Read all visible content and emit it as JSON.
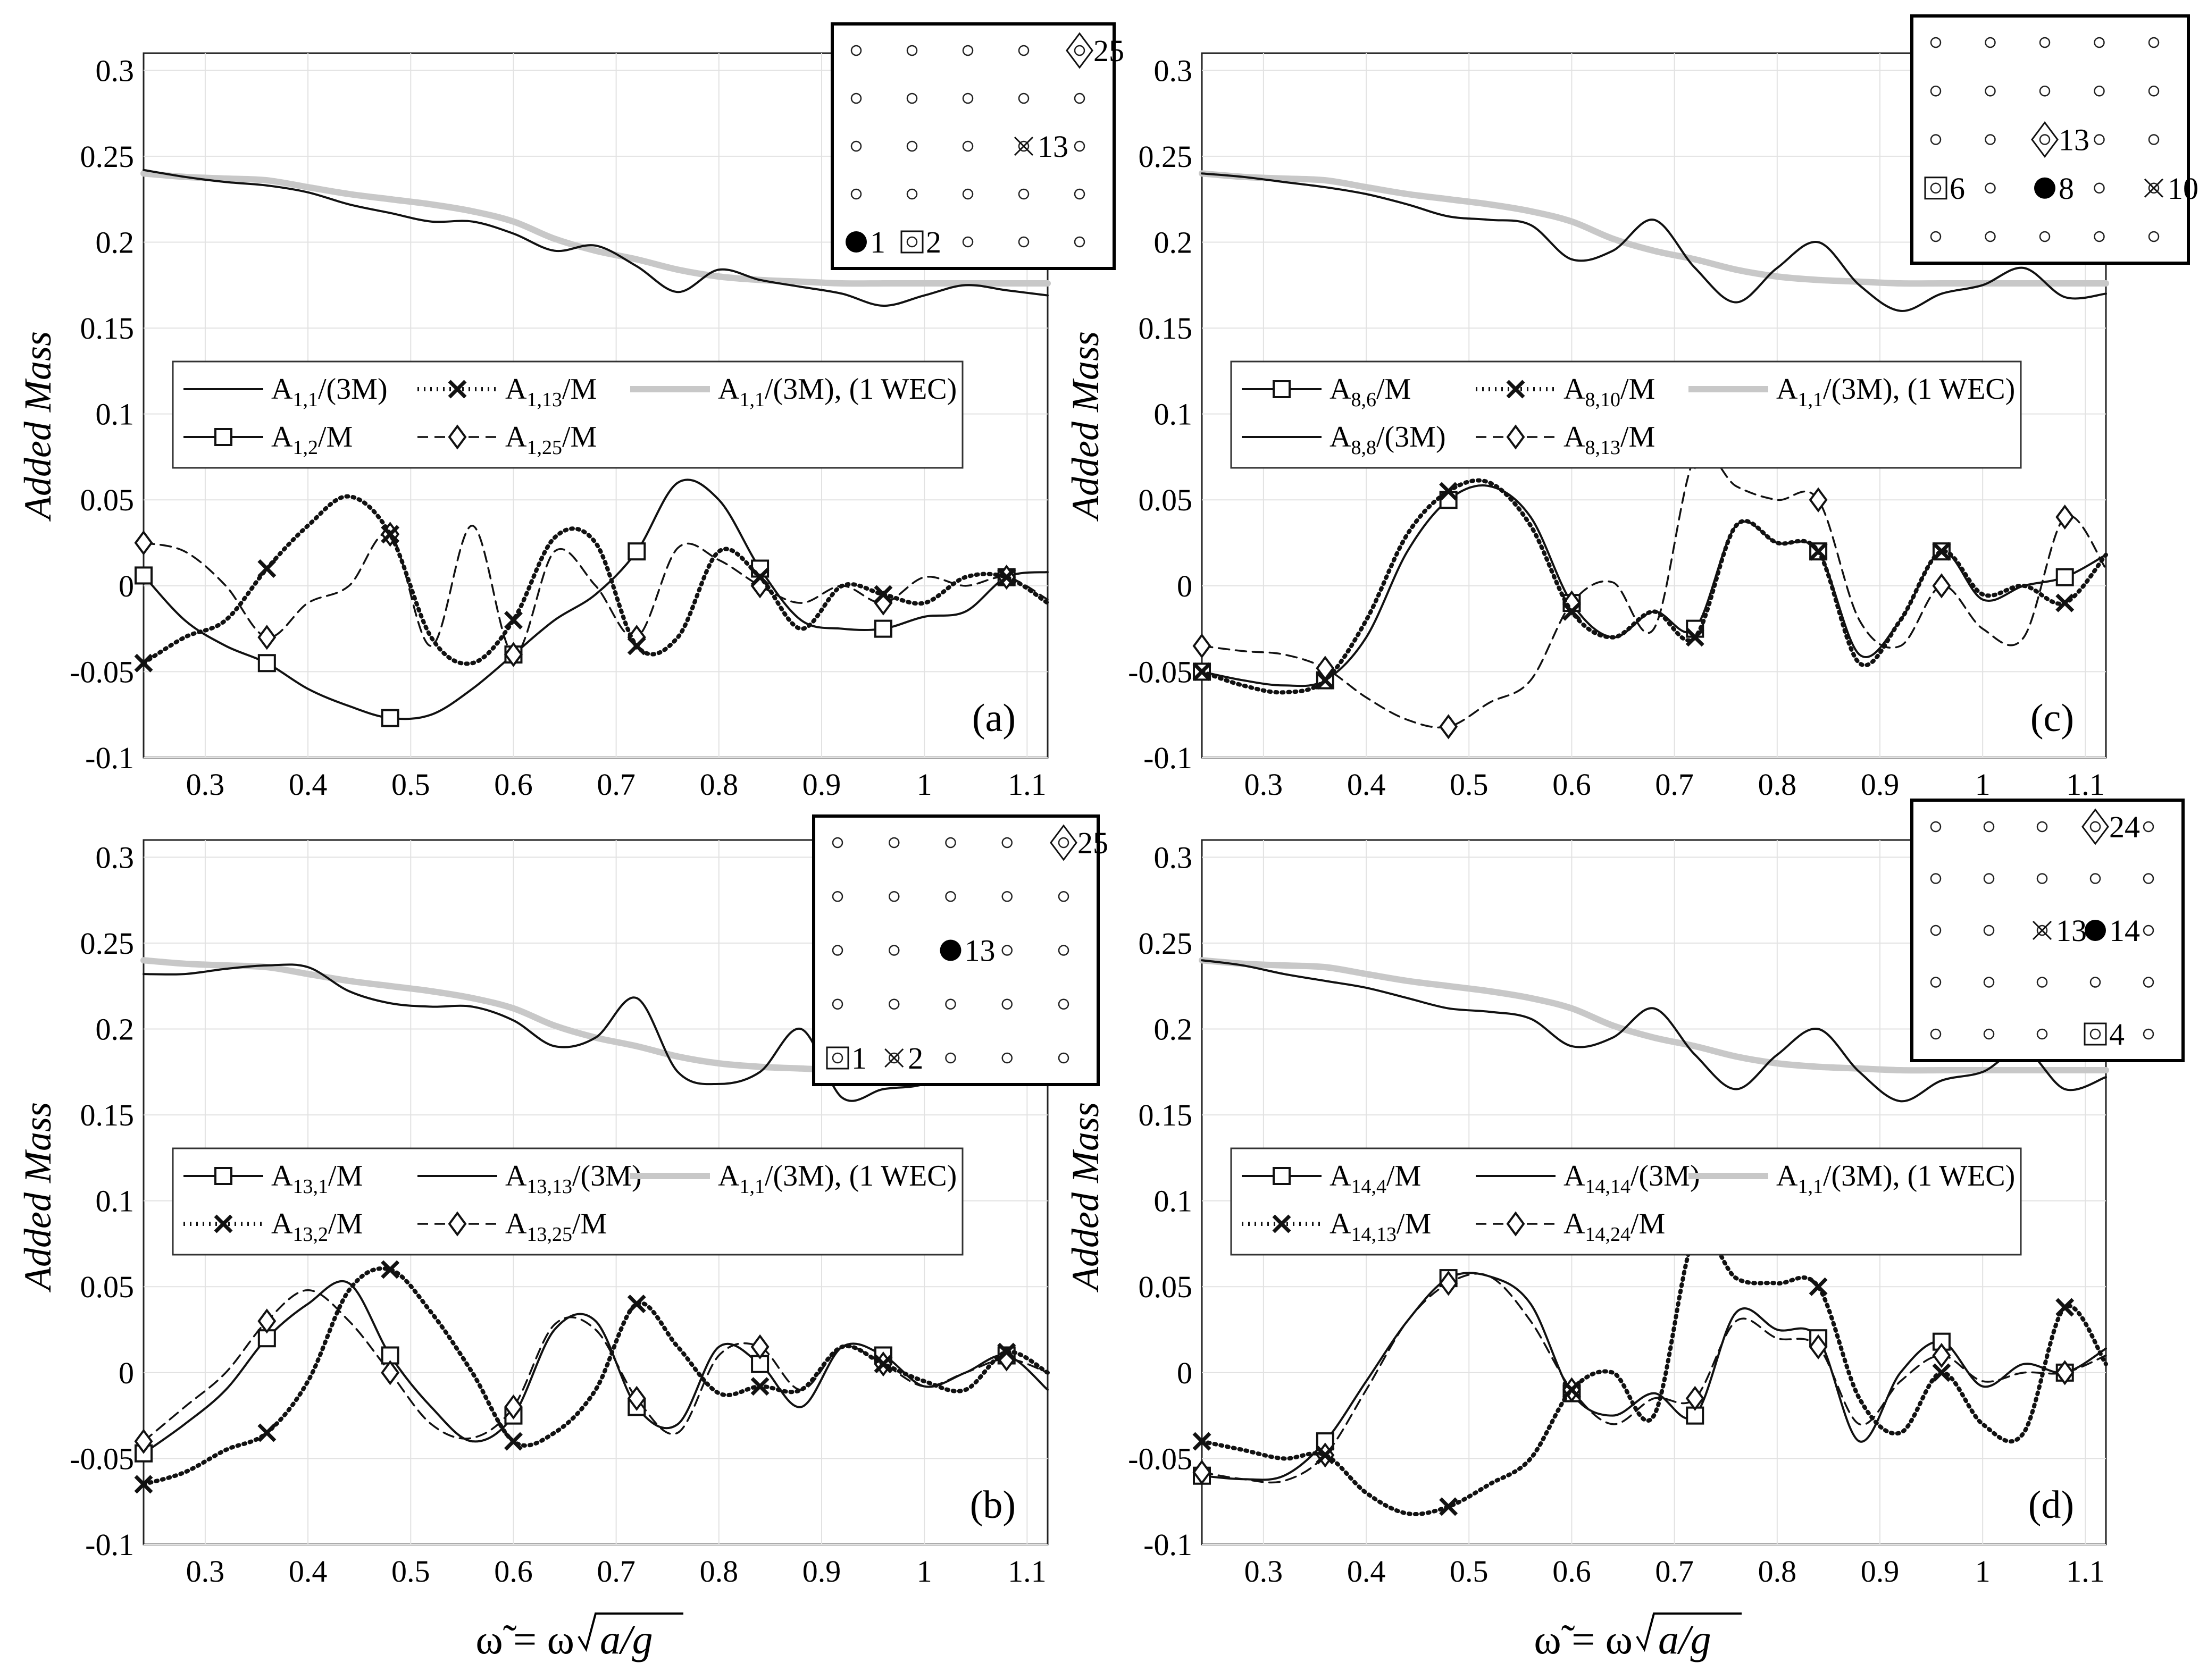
{
  "figure": {
    "ylabel": "Added Mass",
    "xlabel_parts": [
      "ω̃ = ω",
      "a/g"
    ]
  },
  "chart_data": [
    {
      "type": "line",
      "panel_label": "(a)",
      "xlim": [
        0.24,
        1.12
      ],
      "ylim": [
        -0.1,
        0.31
      ],
      "xticks": [
        "0.3",
        "0.4",
        "0.5",
        "0.6",
        "0.7",
        "0.8",
        "0.9",
        "1",
        "1.1"
      ],
      "yticks": [
        "-0.1",
        "-0.05",
        "0",
        "0.05",
        "0.1",
        "0.15",
        "0.2",
        "0.25",
        "0.3"
      ],
      "x": [
        0.24,
        0.28,
        0.32,
        0.36,
        0.4,
        0.44,
        0.48,
        0.52,
        0.56,
        0.6,
        0.64,
        0.68,
        0.72,
        0.76,
        0.8,
        0.84,
        0.88,
        0.92,
        0.96,
        1.0,
        1.04,
        1.08,
        1.12
      ],
      "legend": [
        {
          "base": "A",
          "sub": "1,1",
          "suffix": "/(3M)"
        },
        {
          "base": "A",
          "sub": "1,13",
          "suffix": "/M"
        },
        {
          "base": "A",
          "sub": "1,1",
          "suffix": "/(3M), (1 WEC)"
        },
        {
          "base": "A",
          "sub": "1,2",
          "suffix": "/M"
        },
        {
          "base": "A",
          "sub": "1,25",
          "suffix": "/M"
        }
      ],
      "series": [
        {
          "name": "A_{1,1}/(3M)",
          "style": "solid",
          "values": [
            0.242,
            0.238,
            0.235,
            0.233,
            0.229,
            0.222,
            0.217,
            0.212,
            0.212,
            0.205,
            0.195,
            0.198,
            0.186,
            0.171,
            0.184,
            0.178,
            0.174,
            0.17,
            0.163,
            0.169,
            0.175,
            0.172,
            0.169
          ]
        },
        {
          "name": "A_{1,13}/M",
          "style": "dotted-x",
          "values": [
            -0.045,
            -0.03,
            -0.02,
            0.01,
            0.035,
            0.052,
            0.03,
            -0.03,
            -0.045,
            -0.02,
            0.028,
            0.025,
            -0.035,
            -0.03,
            0.02,
            0.005,
            -0.025,
            0.0,
            -0.005,
            -0.01,
            0.005,
            0.005,
            -0.01
          ]
        },
        {
          "name": "A_{1,1}/(3M), (1 WEC)",
          "style": "gray-thick",
          "values": [
            0.24,
            0.238,
            0.237,
            0.236,
            0.232,
            0.228,
            0.225,
            0.222,
            0.218,
            0.212,
            0.202,
            0.195,
            0.19,
            0.184,
            0.18,
            0.178,
            0.177,
            0.176,
            0.176,
            0.176,
            0.176,
            0.176,
            0.176
          ]
        },
        {
          "name": "A_{1,2}/M",
          "style": "solid-square",
          "values": [
            0.006,
            -0.02,
            -0.035,
            -0.045,
            -0.06,
            -0.07,
            -0.077,
            -0.075,
            -0.06,
            -0.04,
            -0.02,
            -0.005,
            0.02,
            0.06,
            0.05,
            0.01,
            -0.02,
            -0.025,
            -0.025,
            -0.018,
            -0.015,
            0.005,
            0.008
          ]
        },
        {
          "name": "A_{1,25}/M",
          "style": "dashed-diamond",
          "values": [
            0.025,
            0.02,
            0.0,
            -0.03,
            -0.01,
            0.0,
            0.03,
            -0.035,
            0.035,
            -0.04,
            0.02,
            0.0,
            -0.03,
            0.022,
            0.015,
            0.0,
            -0.01,
            0.0,
            -0.01,
            0.005,
            0.0,
            0.005,
            -0.008
          ]
        }
      ],
      "inset": {
        "labels": [
          "25",
          "13",
          "1",
          "2"
        ]
      }
    },
    {
      "type": "line",
      "panel_label": "(b)",
      "xlim": [
        0.24,
        1.12
      ],
      "ylim": [
        -0.1,
        0.31
      ],
      "xticks": [
        "0.3",
        "0.4",
        "0.5",
        "0.6",
        "0.7",
        "0.8",
        "0.9",
        "1",
        "1.1"
      ],
      "yticks": [
        "-0.1",
        "-0.05",
        "0",
        "0.05",
        "0.1",
        "0.15",
        "0.2",
        "0.25",
        "0.3"
      ],
      "x": [
        0.24,
        0.28,
        0.32,
        0.36,
        0.4,
        0.44,
        0.48,
        0.52,
        0.56,
        0.6,
        0.64,
        0.68,
        0.72,
        0.76,
        0.8,
        0.84,
        0.88,
        0.92,
        0.96,
        1.0,
        1.04,
        1.08,
        1.12
      ],
      "legend": [
        {
          "base": "A",
          "sub": "13,1",
          "suffix": "/M"
        },
        {
          "base": "A",
          "sub": "13,13",
          "suffix": "/(3M)"
        },
        {
          "base": "A",
          "sub": "1,1",
          "suffix": "/(3M), (1 WEC)"
        },
        {
          "base": "A",
          "sub": "13,2",
          "suffix": "/M"
        },
        {
          "base": "A",
          "sub": "13,25",
          "suffix": "/M"
        }
      ],
      "series": [
        {
          "name": "A_{13,1}/M",
          "style": "solid-square",
          "values": [
            -0.047,
            -0.03,
            -0.01,
            0.02,
            0.04,
            0.052,
            0.01,
            -0.02,
            -0.04,
            -0.025,
            0.025,
            0.03,
            -0.02,
            -0.03,
            0.015,
            0.005,
            -0.02,
            0.015,
            0.01,
            -0.008,
            0.0,
            0.01,
            -0.01
          ]
        },
        {
          "name": "A_{13,13}/(3M)",
          "style": "solid",
          "values": [
            0.232,
            0.232,
            0.235,
            0.237,
            0.236,
            0.222,
            0.215,
            0.213,
            0.213,
            0.205,
            0.19,
            0.195,
            0.218,
            0.175,
            0.168,
            0.175,
            0.2,
            0.16,
            0.165,
            0.168,
            0.18,
            0.168,
            0.172
          ]
        },
        {
          "name": "A_{1,1}/(3M), (1 WEC)",
          "style": "gray-thick",
          "values": [
            0.24,
            0.238,
            0.237,
            0.236,
            0.232,
            0.228,
            0.225,
            0.222,
            0.218,
            0.212,
            0.202,
            0.195,
            0.19,
            0.184,
            0.18,
            0.178,
            0.177,
            0.176,
            0.176,
            0.176,
            0.176,
            0.176,
            0.176
          ]
        },
        {
          "name": "A_{13,2}/M",
          "style": "dotted-x",
          "values": [
            -0.065,
            -0.058,
            -0.045,
            -0.035,
            -0.005,
            0.048,
            0.06,
            0.035,
            0.0,
            -0.04,
            -0.035,
            -0.01,
            0.04,
            0.015,
            -0.012,
            -0.008,
            -0.01,
            0.015,
            0.005,
            -0.005,
            -0.01,
            0.012,
            0.0
          ]
        },
        {
          "name": "A_{13,25}/M",
          "style": "dashed-diamond",
          "values": [
            -0.04,
            -0.02,
            0.0,
            0.03,
            0.048,
            0.03,
            0.0,
            -0.03,
            -0.038,
            -0.02,
            0.028,
            0.025,
            -0.015,
            -0.035,
            0.01,
            0.015,
            -0.01,
            0.015,
            0.005,
            -0.008,
            0.0,
            0.008,
            0.0
          ]
        }
      ],
      "inset": {
        "labels": [
          "25",
          "13",
          "1",
          "2"
        ]
      }
    },
    {
      "type": "line",
      "panel_label": "(c)",
      "xlim": [
        0.24,
        1.12
      ],
      "ylim": [
        -0.1,
        0.31
      ],
      "xticks": [
        "0.3",
        "0.4",
        "0.5",
        "0.6",
        "0.7",
        "0.8",
        "0.9",
        "1",
        "1.1"
      ],
      "yticks": [
        "-0.1",
        "-0.05",
        "0",
        "0.05",
        "0.1",
        "0.15",
        "0.2",
        "0.25",
        "0.3"
      ],
      "x": [
        0.24,
        0.28,
        0.32,
        0.36,
        0.4,
        0.44,
        0.48,
        0.52,
        0.56,
        0.6,
        0.64,
        0.68,
        0.72,
        0.76,
        0.8,
        0.84,
        0.88,
        0.92,
        0.96,
        1.0,
        1.04,
        1.08,
        1.12
      ],
      "legend": [
        {
          "base": "A",
          "sub": "8,6",
          "suffix": "/M"
        },
        {
          "base": "A",
          "sub": "8,10",
          "suffix": "/M"
        },
        {
          "base": "A",
          "sub": "1,1",
          "suffix": "/(3M), (1 WEC)"
        },
        {
          "base": "A",
          "sub": "8,8",
          "suffix": "/(3M)"
        },
        {
          "base": "A",
          "sub": "8,13",
          "suffix": "/M"
        }
      ],
      "series": [
        {
          "name": "A_{8,6}/M",
          "style": "solid-square",
          "values": [
            -0.05,
            -0.055,
            -0.058,
            -0.055,
            -0.03,
            0.02,
            0.05,
            0.058,
            0.04,
            -0.01,
            -0.03,
            -0.015,
            -0.025,
            0.035,
            0.025,
            0.02,
            -0.04,
            -0.02,
            0.02,
            -0.008,
            0.0,
            0.005,
            0.018
          ]
        },
        {
          "name": "A_{8,10}/M",
          "style": "dotted-x",
          "values": [
            -0.05,
            -0.058,
            -0.062,
            -0.055,
            -0.02,
            0.03,
            0.055,
            0.06,
            0.035,
            -0.015,
            -0.03,
            -0.015,
            -0.03,
            0.035,
            0.025,
            0.02,
            -0.045,
            -0.02,
            0.02,
            -0.005,
            0.0,
            -0.01,
            0.018
          ]
        },
        {
          "name": "A_{1,1}/(3M), (1 WEC)",
          "style": "gray-thick",
          "values": [
            0.24,
            0.238,
            0.237,
            0.236,
            0.232,
            0.228,
            0.225,
            0.222,
            0.218,
            0.212,
            0.202,
            0.195,
            0.19,
            0.184,
            0.18,
            0.178,
            0.177,
            0.176,
            0.176,
            0.176,
            0.176,
            0.176,
            0.176
          ]
        },
        {
          "name": "A_{8,8}/(3M)",
          "style": "solid",
          "values": [
            0.24,
            0.238,
            0.235,
            0.232,
            0.228,
            0.222,
            0.215,
            0.213,
            0.21,
            0.19,
            0.195,
            0.213,
            0.185,
            0.165,
            0.185,
            0.2,
            0.175,
            0.16,
            0.17,
            0.175,
            0.185,
            0.168,
            0.17
          ]
        },
        {
          "name": "A_{8,13}/M",
          "style": "dashed-diamond",
          "values": [
            -0.035,
            -0.038,
            -0.04,
            -0.048,
            -0.065,
            -0.078,
            -0.082,
            -0.068,
            -0.055,
            -0.01,
            0.002,
            -0.025,
            0.075,
            0.058,
            0.05,
            0.05,
            -0.02,
            -0.035,
            0.0,
            -0.025,
            -0.03,
            0.04,
            0.01
          ]
        }
      ],
      "inset": {
        "labels": [
          "13",
          "6",
          "8",
          "10"
        ]
      }
    },
    {
      "type": "line",
      "panel_label": "(d)",
      "xlim": [
        0.24,
        1.12
      ],
      "ylim": [
        -0.1,
        0.31
      ],
      "xticks": [
        "0.3",
        "0.4",
        "0.5",
        "0.6",
        "0.7",
        "0.8",
        "0.9",
        "1",
        "1.1"
      ],
      "yticks": [
        "-0.1",
        "-0.05",
        "0",
        "0.05",
        "0.1",
        "0.15",
        "0.2",
        "0.25",
        "0.3"
      ],
      "x": [
        0.24,
        0.28,
        0.32,
        0.36,
        0.4,
        0.44,
        0.48,
        0.52,
        0.56,
        0.6,
        0.64,
        0.68,
        0.72,
        0.76,
        0.8,
        0.84,
        0.88,
        0.92,
        0.96,
        1.0,
        1.04,
        1.08,
        1.12
      ],
      "legend": [
        {
          "base": "A",
          "sub": "14,4",
          "suffix": "/M"
        },
        {
          "base": "A",
          "sub": "14,14",
          "suffix": "/(3M)"
        },
        {
          "base": "A",
          "sub": "1,1",
          "suffix": "/(3M), (1 WEC)"
        },
        {
          "base": "A",
          "sub": "14,13",
          "suffix": "/M"
        },
        {
          "base": "A",
          "sub": "14,24",
          "suffix": "/M"
        }
      ],
      "series": [
        {
          "name": "A_{14,4}/M",
          "style": "solid-square",
          "values": [
            -0.06,
            -0.062,
            -0.06,
            -0.04,
            -0.005,
            0.03,
            0.055,
            0.056,
            0.04,
            -0.012,
            -0.025,
            -0.012,
            -0.025,
            0.035,
            0.025,
            0.02,
            -0.04,
            0.0,
            0.018,
            -0.008,
            0.005,
            0.0,
            0.014
          ]
        },
        {
          "name": "A_{14,14}/(3M)",
          "style": "solid",
          "values": [
            0.24,
            0.237,
            0.232,
            0.228,
            0.224,
            0.218,
            0.212,
            0.21,
            0.206,
            0.19,
            0.195,
            0.212,
            0.185,
            0.165,
            0.185,
            0.2,
            0.175,
            0.158,
            0.17,
            0.175,
            0.188,
            0.165,
            0.172
          ]
        },
        {
          "name": "A_{1,1}/(3M), (1 WEC)",
          "style": "gray-thick",
          "values": [
            0.24,
            0.238,
            0.237,
            0.236,
            0.232,
            0.228,
            0.225,
            0.222,
            0.218,
            0.212,
            0.202,
            0.195,
            0.19,
            0.184,
            0.18,
            0.178,
            0.177,
            0.176,
            0.176,
            0.176,
            0.176,
            0.176,
            0.176
          ]
        },
        {
          "name": "A_{14,13}/M",
          "style": "dotted-x",
          "values": [
            -0.04,
            -0.045,
            -0.05,
            -0.048,
            -0.07,
            -0.082,
            -0.078,
            -0.065,
            -0.05,
            -0.01,
            0.0,
            -0.025,
            0.08,
            0.055,
            0.052,
            0.05,
            -0.015,
            -0.035,
            0.0,
            -0.03,
            -0.035,
            0.038,
            0.005
          ]
        },
        {
          "name": "A_{14,24}/M",
          "style": "dashed-diamond",
          "values": [
            -0.058,
            -0.062,
            -0.063,
            -0.048,
            -0.01,
            0.03,
            0.052,
            0.056,
            0.03,
            -0.01,
            -0.03,
            -0.015,
            -0.015,
            0.03,
            0.02,
            0.015,
            -0.03,
            -0.005,
            0.01,
            -0.005,
            0.0,
            0.0,
            0.01
          ]
        }
      ],
      "inset": {
        "labels": [
          "24",
          "13",
          "14",
          "4"
        ]
      }
    }
  ]
}
